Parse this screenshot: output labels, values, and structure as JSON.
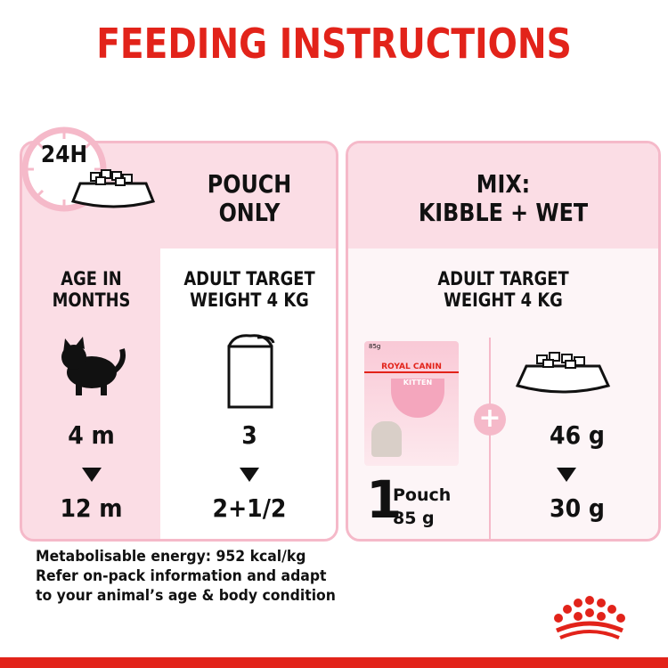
{
  "title": "FEEDING INSTRUCTIONS",
  "badge": "24H",
  "pouch_only": {
    "heading_line1": "POUCH",
    "heading_line2": "ONLY",
    "age_label_line1": "AGE IN",
    "age_label_line2": "MONTHS",
    "target_line1": "ADULT TARGET",
    "target_line2": "WEIGHT 4 KG",
    "age_from": "4 m",
    "age_to": "12 m",
    "pouch_from": "3",
    "pouch_to": "2+1/2"
  },
  "mix": {
    "heading_line1": "MIX:",
    "heading_line2": "KIBBLE + WET",
    "target_line1": "ADULT TARGET",
    "target_line2": "WEIGHT 4 KG",
    "pouch_count": "1",
    "pouch_unit": "Pouch",
    "pouch_weight": "85 g",
    "kibble_from": "46 g",
    "kibble_to": "30 g",
    "pack": {
      "weight": "85g",
      "brand": "ROYAL CANIN",
      "variant": "KITTEN"
    }
  },
  "footer": {
    "line1": "Metabolisable energy: 952 kcal/kg",
    "line2": "Refer on-pack information and adapt",
    "line3": "to your animal’s age & body condition"
  },
  "colors": {
    "brand_red": "#e2231a",
    "pink": "#fbdde5",
    "pink_border": "#f5b9c9"
  }
}
